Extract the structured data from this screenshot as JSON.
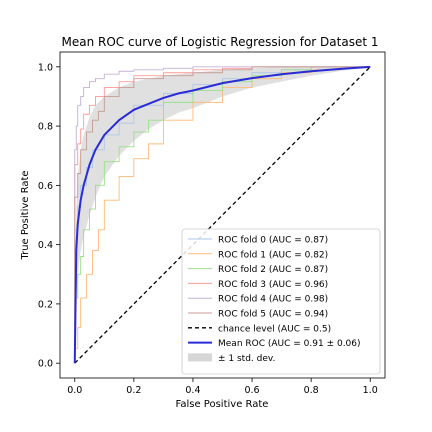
{
  "chart_data": {
    "type": "line",
    "title": "Mean ROC curve of Logistic Regression for Dataset 1",
    "xlabel": "False Positive Rate",
    "ylabel": "True Positive Rate",
    "xlim": [
      -0.05,
      1.05
    ],
    "ylim": [
      -0.05,
      1.05
    ],
    "xticks": [
      0.0,
      0.2,
      0.4,
      0.6,
      0.8,
      1.0
    ],
    "yticks": [
      0.0,
      0.2,
      0.4,
      0.6,
      0.8,
      1.0
    ],
    "tick_labels": [
      "0.0",
      "0.2",
      "0.4",
      "0.6",
      "0.8",
      "1.0"
    ],
    "grid": false,
    "legend_position": "bottom-right",
    "series": [
      {
        "name": "ROC fold 0",
        "auc": 0.87,
        "color": "#aec7e8",
        "style": "thin",
        "x": [
          0,
          0,
          0.01,
          0.02,
          0.04,
          0.06,
          0.1,
          0.15,
          0.2,
          0.3,
          0.4,
          0.5,
          0.6,
          0.7,
          0.8,
          0.9,
          1.0
        ],
        "y": [
          0,
          0.3,
          0.45,
          0.53,
          0.6,
          0.66,
          0.72,
          0.77,
          0.81,
          0.87,
          0.91,
          0.94,
          0.96,
          0.98,
          0.99,
          1.0,
          1.0
        ]
      },
      {
        "name": "ROC fold 1",
        "auc": 0.82,
        "color": "#ffbb78",
        "style": "thin",
        "x": [
          0,
          0.01,
          0.02,
          0.04,
          0.06,
          0.08,
          0.1,
          0.15,
          0.2,
          0.25,
          0.3,
          0.4,
          0.5,
          0.6,
          0.7,
          0.8,
          0.9,
          1.0
        ],
        "y": [
          0,
          0.05,
          0.12,
          0.22,
          0.3,
          0.38,
          0.45,
          0.55,
          0.63,
          0.69,
          0.74,
          0.82,
          0.88,
          0.93,
          0.96,
          0.98,
          0.99,
          1.0
        ]
      },
      {
        "name": "ROC fold 2",
        "auc": 0.87,
        "color": "#98df8a",
        "style": "thin",
        "x": [
          0,
          0.01,
          0.02,
          0.03,
          0.05,
          0.07,
          0.1,
          0.15,
          0.2,
          0.25,
          0.3,
          0.4,
          0.5,
          0.6,
          0.7,
          0.8,
          0.9,
          1.0
        ],
        "y": [
          0,
          0.22,
          0.3,
          0.36,
          0.45,
          0.52,
          0.6,
          0.68,
          0.73,
          0.78,
          0.82,
          0.88,
          0.92,
          0.95,
          0.97,
          0.99,
          1.0,
          1.0
        ]
      },
      {
        "name": "ROC fold 3",
        "auc": 0.96,
        "color": "#ff9896",
        "style": "thin",
        "x": [
          0,
          0,
          0.01,
          0.02,
          0.03,
          0.05,
          0.07,
          0.1,
          0.15,
          0.2,
          0.3,
          0.4,
          0.5,
          0.6,
          0.8,
          1.0
        ],
        "y": [
          0,
          0.5,
          0.67,
          0.74,
          0.79,
          0.84,
          0.87,
          0.9,
          0.93,
          0.95,
          0.97,
          0.98,
          0.99,
          0.995,
          1.0,
          1.0
        ]
      },
      {
        "name": "ROC fold 4",
        "auc": 0.98,
        "color": "#c5b0d5",
        "style": "thin",
        "x": [
          0,
          0,
          0.005,
          0.01,
          0.02,
          0.03,
          0.05,
          0.07,
          0.1,
          0.15,
          0.2,
          0.3,
          0.4,
          0.6,
          0.8,
          1.0
        ],
        "y": [
          0,
          0.6,
          0.72,
          0.8,
          0.87,
          0.9,
          0.93,
          0.95,
          0.96,
          0.975,
          0.985,
          0.99,
          0.995,
          1.0,
          1.0,
          1.0
        ]
      },
      {
        "name": "ROC fold 5",
        "auc": 0.94,
        "color": "#c49c94",
        "style": "thin",
        "x": [
          0,
          0,
          0.01,
          0.02,
          0.04,
          0.06,
          0.08,
          0.1,
          0.15,
          0.2,
          0.3,
          0.4,
          0.5,
          0.6,
          0.8,
          1.0
        ],
        "y": [
          0,
          0.42,
          0.56,
          0.64,
          0.72,
          0.78,
          0.82,
          0.85,
          0.9,
          0.93,
          0.96,
          0.97,
          0.98,
          0.99,
          1.0,
          1.0
        ]
      },
      {
        "name": "chance level",
        "auc": 0.5,
        "color": "#000000",
        "style": "dashed",
        "x": [
          0,
          1
        ],
        "y": [
          0,
          1
        ]
      },
      {
        "name": "Mean ROC",
        "auc": 0.91,
        "auc_std": 0.06,
        "color": "#2b2bd6",
        "style": "thick",
        "x": [
          0,
          0.005,
          0.01,
          0.02,
          0.03,
          0.05,
          0.07,
          0.1,
          0.15,
          0.2,
          0.25,
          0.3,
          0.35,
          0.4,
          0.5,
          0.6,
          0.7,
          0.8,
          0.9,
          1.0
        ],
        "y": [
          0,
          0.38,
          0.47,
          0.55,
          0.6,
          0.67,
          0.72,
          0.77,
          0.82,
          0.855,
          0.875,
          0.895,
          0.91,
          0.92,
          0.945,
          0.962,
          0.975,
          0.985,
          0.993,
          1.0
        ]
      }
    ],
    "std_band": {
      "name": "± 1 std. dev.",
      "color": "#cccccc",
      "x": [
        0,
        0.005,
        0.01,
        0.02,
        0.03,
        0.05,
        0.07,
        0.1,
        0.15,
        0.2,
        0.25,
        0.3,
        0.35,
        0.4,
        0.5,
        0.6,
        0.7,
        0.8,
        0.9,
        1.0
      ],
      "upper": [
        0.06,
        0.52,
        0.63,
        0.72,
        0.77,
        0.83,
        0.87,
        0.9,
        0.93,
        0.95,
        0.96,
        0.97,
        0.975,
        0.98,
        0.99,
        0.995,
        1.0,
        1.0,
        1.0,
        1.0
      ],
      "lower": [
        0,
        0.22,
        0.3,
        0.38,
        0.43,
        0.5,
        0.56,
        0.63,
        0.7,
        0.75,
        0.79,
        0.82,
        0.845,
        0.86,
        0.9,
        0.93,
        0.95,
        0.97,
        0.986,
        1.0
      ]
    },
    "legend": [
      "ROC fold 0 (AUC = 0.87)",
      "ROC fold 1 (AUC = 0.82)",
      "ROC fold 2 (AUC = 0.87)",
      "ROC fold 3 (AUC = 0.96)",
      "ROC fold 4 (AUC = 0.98)",
      "ROC fold 5 (AUC = 0.94)",
      "chance level (AUC = 0.5)",
      "Mean ROC (AUC = 0.91 ± 0.06)",
      "± 1 std. dev."
    ]
  }
}
